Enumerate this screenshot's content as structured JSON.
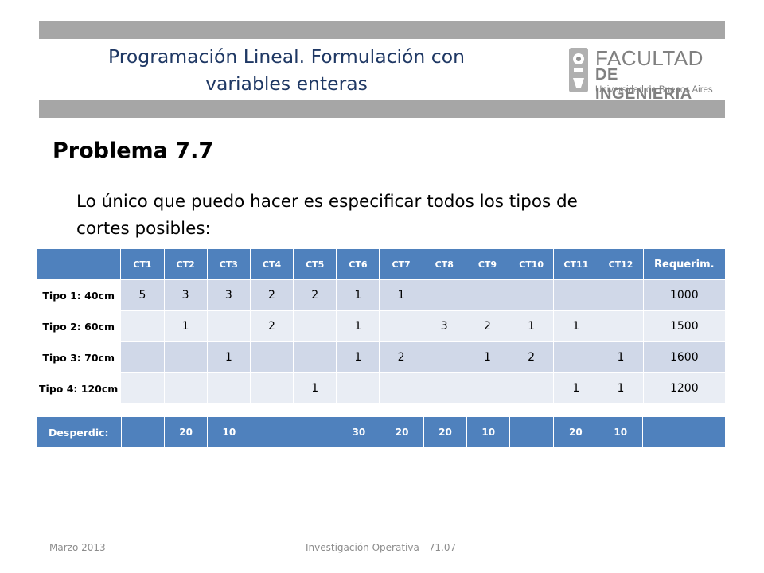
{
  "header": {
    "title_line1": "Programación Lineal. Formulación con",
    "title_line2": "variables enteras",
    "logo_line1": "FACULTAD",
    "logo_line2": "DE INGENIERIA",
    "logo_line3": "Universidad de Buenos Aires"
  },
  "problem_title": "Problema 7.7",
  "description_line1": "Lo único que puedo hacer es especificar todos los tipos de",
  "description_line2": "cortes posibles:",
  "cut_table": {
    "columns": [
      "CT1",
      "CT2",
      "CT3",
      "CT4",
      "CT5",
      "CT6",
      "CT7",
      "CT8",
      "CT9",
      "CT10",
      "CT11",
      "CT12",
      "Requerim."
    ],
    "rows": [
      {
        "label": "Tipo 1: 40cm",
        "cells": [
          "5",
          "3",
          "3",
          "2",
          "2",
          "1",
          "1",
          "",
          "",
          "",
          "",
          "",
          "1000"
        ]
      },
      {
        "label": "Tipo 2: 60cm",
        "cells": [
          "",
          "1",
          "",
          "2",
          "",
          "1",
          "",
          "3",
          "2",
          "1",
          "1",
          "",
          "1500"
        ]
      },
      {
        "label": "Tipo 3: 70cm",
        "cells": [
          "",
          "",
          "1",
          "",
          "",
          "1",
          "2",
          "",
          "1",
          "2",
          "",
          "1",
          "1600"
        ]
      },
      {
        "label": "Tipo 4: 120cm",
        "cells": [
          "",
          "",
          "",
          "",
          "1",
          "",
          "",
          "",
          "",
          "",
          "1",
          "1",
          "1200"
        ]
      }
    ]
  },
  "waste_table": {
    "label": "Desperdic:",
    "cells": [
      "20",
      "10",
      "",
      "",
      "30",
      "20",
      "20",
      "10",
      "",
      "20",
      "10",
      ""
    ]
  },
  "footer": {
    "date": "Marzo 2013",
    "course": "Investigación Operativa - 71.07"
  }
}
